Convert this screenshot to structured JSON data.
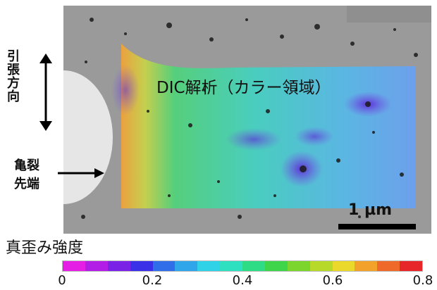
{
  "labels": {
    "direction": "引張方向",
    "crack_tip_line1": "亀裂",
    "crack_tip_line2": "先端",
    "dic": "DIC解析（カラー領域）",
    "scale": "1 µm",
    "colorbar_title": "真歪み強度"
  },
  "colorbar": {
    "colors": [
      "#e41ee4",
      "#b21ee6",
      "#7a22e6",
      "#3a30e8",
      "#2f6ee8",
      "#2fa6ea",
      "#2fd2e6",
      "#2ee0bf",
      "#2fdc86",
      "#3ed54b",
      "#7bd52c",
      "#b6d92a",
      "#ead92a",
      "#f2a22a",
      "#ef6a2a",
      "#e7262a"
    ],
    "ticks": [
      {
        "value": 0,
        "label": "0"
      },
      {
        "value": 0.2,
        "label": "0.2"
      },
      {
        "value": 0.4,
        "label": "0.4"
      },
      {
        "value": 0.6,
        "label": "0.6"
      },
      {
        "value": 0.8,
        "label": "0.8"
      }
    ]
  }
}
